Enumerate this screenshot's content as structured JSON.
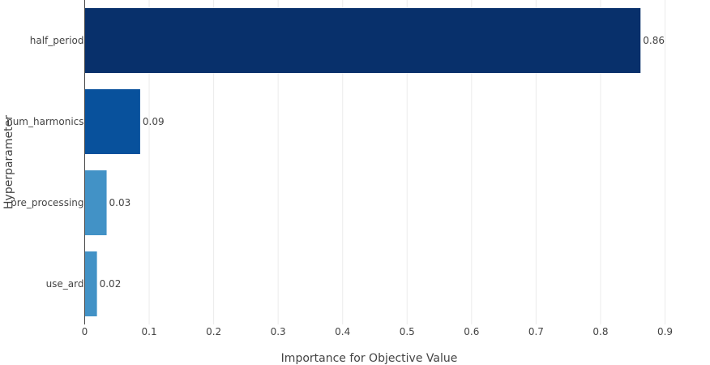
{
  "chart_data": {
    "type": "bar",
    "orientation": "horizontal",
    "categories": [
      "half_period",
      "num_harmonics",
      "pre_processing",
      "use_ard"
    ],
    "values": [
      0.862,
      0.086,
      0.034,
      0.019
    ],
    "data_labels": [
      "0.86",
      "0.09",
      "0.03",
      "0.02"
    ],
    "colors": [
      "#08306b",
      "#08519c",
      "#4292c6",
      "#4292c6"
    ],
    "xlabel": "Importance for Objective Value",
    "ylabel": "Hyperparameter",
    "xlim": [
      0,
      0.9
    ],
    "xticks": [
      0,
      0.1,
      0.2,
      0.3,
      0.4,
      0.5,
      0.6,
      0.7,
      0.8,
      0.9
    ],
    "xtick_labels": [
      "0",
      "0.1",
      "0.2",
      "0.3",
      "0.4",
      "0.5",
      "0.6",
      "0.7",
      "0.8",
      "0.9"
    ],
    "grid": true
  }
}
